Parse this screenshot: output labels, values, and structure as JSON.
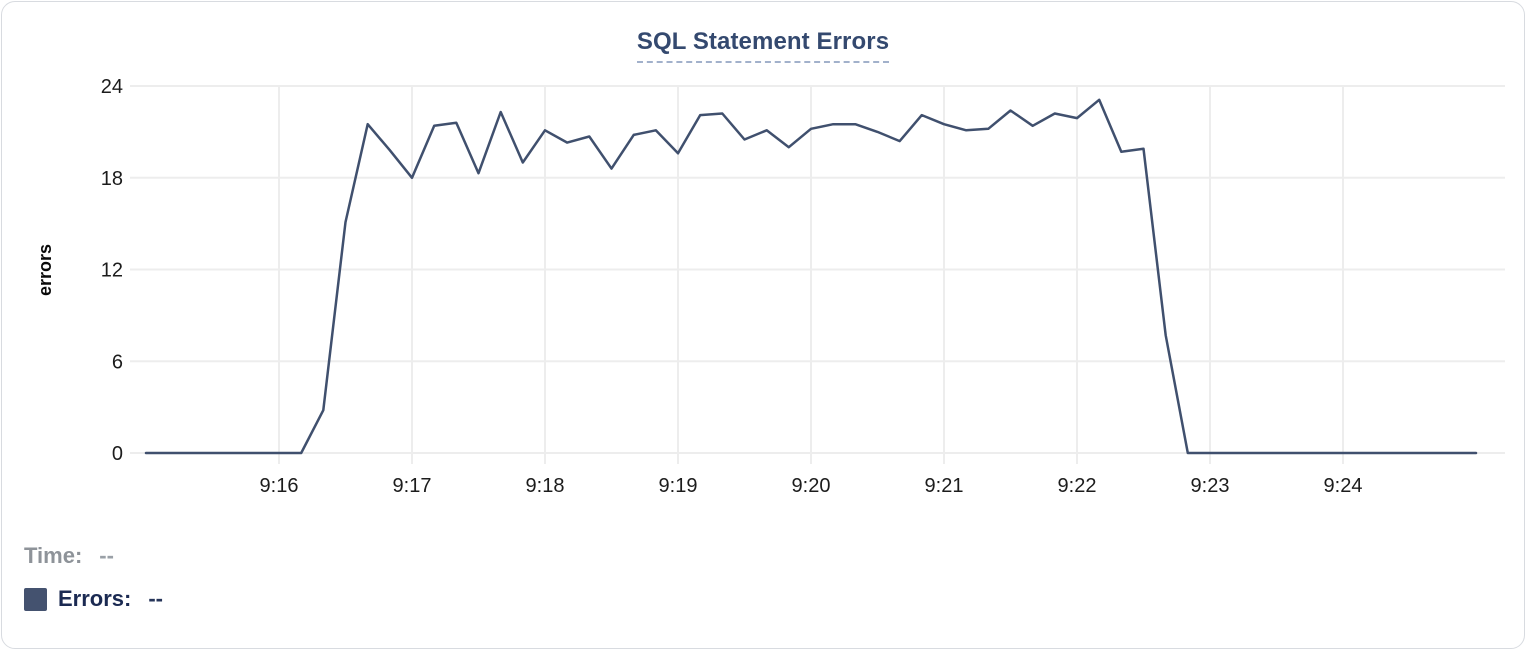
{
  "title": "SQL Statement Errors",
  "chart_data": {
    "type": "line",
    "title": "SQL Statement Errors",
    "xlabel": "",
    "ylabel": "errors",
    "x_tick_labels": [
      "9:16",
      "9:17",
      "9:18",
      "9:19",
      "9:20",
      "9:21",
      "9:22",
      "9:23",
      "9:24"
    ],
    "y_ticks": [
      0,
      6,
      12,
      18,
      24
    ],
    "ylim": [
      0,
      24
    ],
    "x_range": [
      "9:15:00",
      "9:25:00"
    ],
    "grid": true,
    "legend_position": "bottom-left",
    "series": [
      {
        "name": "Errors",
        "color": "#40506e",
        "x": [
          "9:15:00",
          "9:15:10",
          "9:15:20",
          "9:15:30",
          "9:15:40",
          "9:15:50",
          "9:16:00",
          "9:16:10",
          "9:16:20",
          "9:16:30",
          "9:16:40",
          "9:16:50",
          "9:17:00",
          "9:17:10",
          "9:17:20",
          "9:17:30",
          "9:17:40",
          "9:17:50",
          "9:18:00",
          "9:18:10",
          "9:18:20",
          "9:18:30",
          "9:18:40",
          "9:18:50",
          "9:19:00",
          "9:19:10",
          "9:19:20",
          "9:19:30",
          "9:19:40",
          "9:19:50",
          "9:20:00",
          "9:20:10",
          "9:20:20",
          "9:20:30",
          "9:20:40",
          "9:20:50",
          "9:21:00",
          "9:21:10",
          "9:21:20",
          "9:21:30",
          "9:21:40",
          "9:21:50",
          "9:22:00",
          "9:22:10",
          "9:22:20",
          "9:22:30",
          "9:22:40",
          "9:22:50",
          "9:23:00",
          "9:23:10",
          "9:23:20",
          "9:23:30",
          "9:23:40",
          "9:23:50",
          "9:24:00",
          "9:24:10",
          "9:24:20",
          "9:24:30",
          "9:24:40",
          "9:24:50",
          "9:25:00"
        ],
        "values": [
          0,
          0,
          0,
          0,
          0,
          0,
          0,
          0,
          2.8,
          15.1,
          21.5,
          19.8,
          18,
          21.4,
          21.6,
          18.3,
          22.3,
          19,
          21.1,
          20.3,
          20.7,
          18.6,
          20.8,
          21.1,
          19.6,
          22.1,
          22.2,
          20.5,
          21.1,
          20,
          21.2,
          21.5,
          21.5,
          21,
          20.4,
          22.1,
          21.5,
          21.1,
          21.2,
          22.4,
          21.4,
          22.2,
          21.9,
          23.1,
          19.7,
          19.9,
          7.7,
          0,
          0,
          0,
          0,
          0,
          0,
          0,
          0,
          0,
          0,
          0,
          0,
          0,
          0
        ]
      }
    ]
  },
  "legend": {
    "time_label": "Time:",
    "time_value": "--",
    "errors_label": "Errors:",
    "errors_value": "--"
  },
  "colors": {
    "line": "#40506e",
    "swatch": "#44526f",
    "title": "#34496f",
    "title_underline": "#a2b1cb",
    "grid": "#ededed",
    "tick_text": "#1c1c1c",
    "axis_label_text": "#0a0a0a",
    "card_border": "#d8dbe0"
  }
}
